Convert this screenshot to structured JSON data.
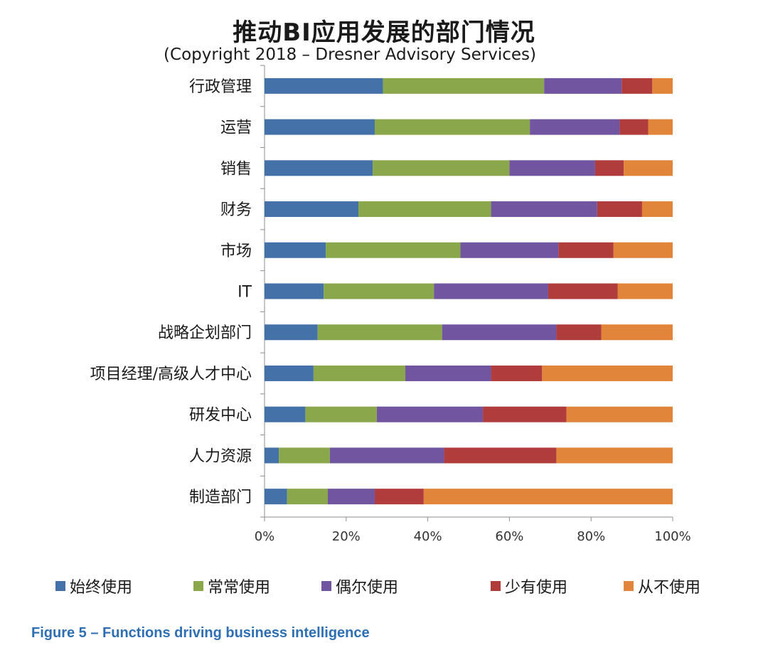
{
  "title": "推动BI应用发展的部门情况",
  "subtitle": "(Copyright 2018 – Dresner Advisory Services)",
  "caption": "Figure 5 – Functions driving business intelligence",
  "colors": {
    "always": "#4472a8",
    "often": "#8aa84b",
    "sometimes": "#7155a0",
    "rarely": "#b03c3c",
    "never": "#e0853a"
  },
  "legend": [
    {
      "label": "始终使用",
      "color": "#4472a8"
    },
    {
      "label": "常常使用",
      "color": "#8aa84b"
    },
    {
      "label": "偶尔使用",
      "color": "#7155a0"
    },
    {
      "label": "少有使用",
      "color": "#b03c3c"
    },
    {
      "label": "从不使用",
      "color": "#e0853a"
    }
  ],
  "chart_data": {
    "type": "bar",
    "orientation": "horizontal",
    "stacked": true,
    "categories": [
      "行政管理",
      "运营",
      "销售",
      "财务",
      "市场",
      "IT",
      "战略企划部门",
      "项目经理/高级人才中心",
      "研发中心",
      "人力资源",
      "制造部门"
    ],
    "series": [
      {
        "name": "始终使用",
        "values": [
          29,
          27,
          26.5,
          23,
          15,
          14.5,
          13,
          12,
          10,
          3.5,
          5.5
        ]
      },
      {
        "name": "常常使用",
        "values": [
          39.5,
          38,
          33.5,
          32.5,
          33,
          27,
          30.5,
          22.5,
          17.5,
          12.5,
          10
        ]
      },
      {
        "name": "偶尔使用",
        "values": [
          19,
          22,
          21,
          26,
          24,
          28,
          28,
          21,
          26,
          28,
          11.5
        ]
      },
      {
        "name": "少有使用",
        "values": [
          7.5,
          7,
          7,
          11,
          13.5,
          17,
          11,
          12.5,
          20.5,
          27.5,
          12
        ]
      },
      {
        "name": "从不使用",
        "values": [
          5,
          6,
          12,
          7.5,
          14.5,
          13.5,
          17.5,
          32,
          26,
          28.5,
          61
        ]
      }
    ],
    "xlim": [
      0,
      100
    ],
    "xticks": [
      "0%",
      "20%",
      "40%",
      "60%",
      "80%",
      "100%"
    ],
    "grid": false,
    "legend_position": "bottom"
  }
}
